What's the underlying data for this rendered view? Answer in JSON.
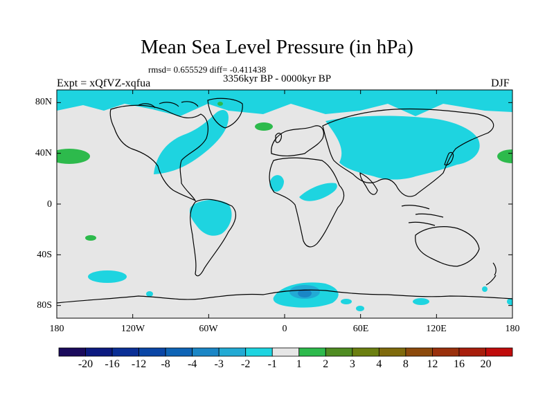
{
  "title": "Mean Sea Level Pressure (in hPa)",
  "stats": "rmsd= 0.655529 diff= -0.411438",
  "period": "3356kyr BP - 0000kyr BP",
  "experiment": "Expt = xQfVZ-xqfua",
  "season": "DJF",
  "axes": {
    "lat_labels": [
      "80N",
      "40N",
      "0",
      "40S",
      "80S"
    ],
    "lat_values": [
      80,
      40,
      0,
      -40,
      -80
    ],
    "lon_labels": [
      "180",
      "120W",
      "60W",
      "0",
      "60E",
      "120E",
      "180"
    ],
    "lon_values": [
      -180,
      -120,
      -60,
      0,
      60,
      120,
      180
    ]
  },
  "colorbar": {
    "labels": [
      "-20",
      "-16",
      "-12",
      "-8",
      "-4",
      "-3",
      "-2",
      "-1",
      "1",
      "2",
      "3",
      "4",
      "8",
      "12",
      "16",
      "20"
    ],
    "colors": [
      "#1a0a5c",
      "#0c1a80",
      "#0a2f96",
      "#0a46a6",
      "#0e64b6",
      "#1a86c6",
      "#22aad4",
      "#1ed4e0",
      "#e6e6e6",
      "#2dba4c",
      "#4f8c22",
      "#6b7f10",
      "#7f6a0c",
      "#8c4a0c",
      "#9a300c",
      "#a81e0c",
      "#c00c0c"
    ]
  },
  "colors": {
    "background": "#e6e6e6",
    "neg1": "#1ed4e0",
    "neg2": "#22aad4",
    "neg3": "#1a86c6",
    "pos1": "#2dba4c"
  }
}
